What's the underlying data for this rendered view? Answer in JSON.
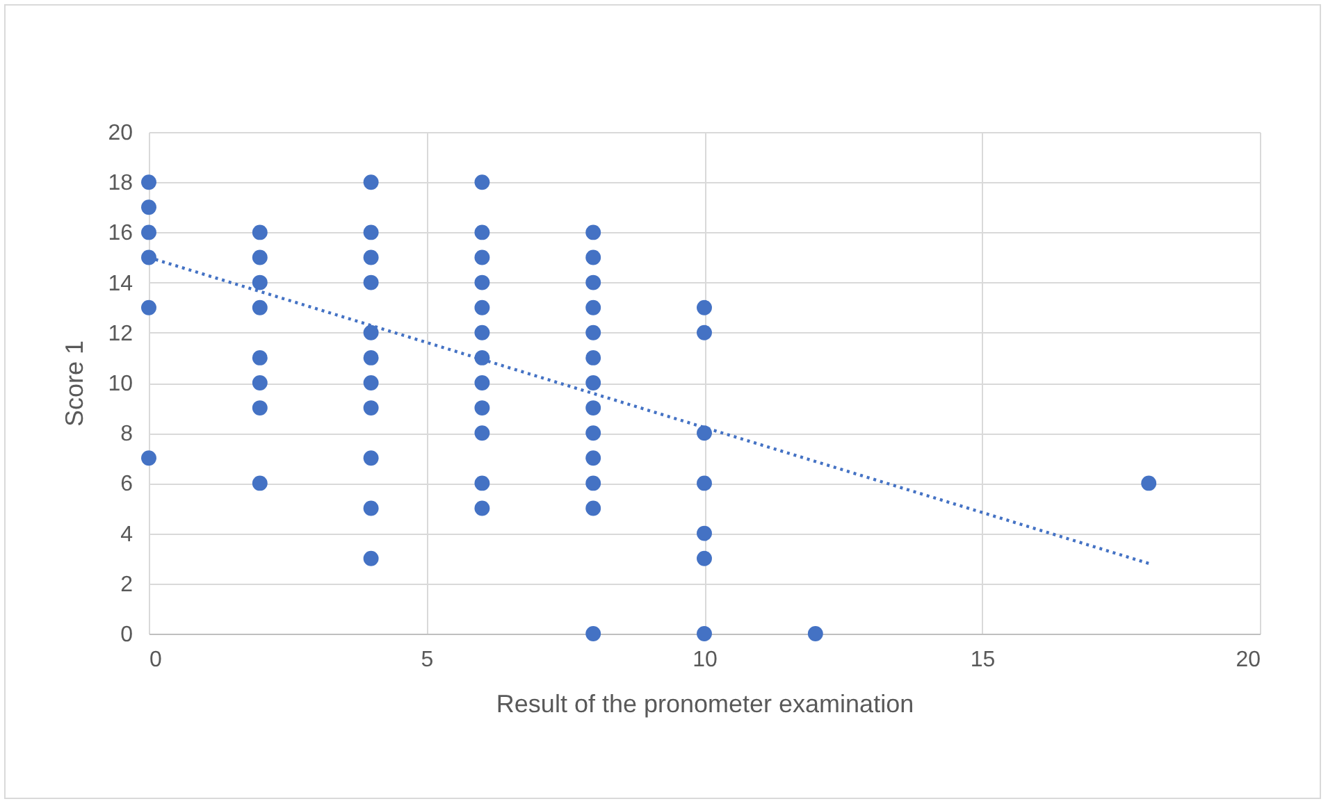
{
  "chart_data": {
    "type": "scatter",
    "xlabel": "Result of the pronometer examination",
    "ylabel": "Score 1",
    "xlim": [
      0,
      20
    ],
    "xticks": [
      0,
      5,
      10,
      15,
      20
    ],
    "ylim": [
      0,
      20
    ],
    "yticks": [
      0,
      2,
      4,
      6,
      8,
      10,
      12,
      14,
      16,
      18,
      20
    ],
    "grid": true,
    "legend": false,
    "series": [
      {
        "type": "scatter",
        "marker": "circle",
        "color": "#4472c4",
        "x": [
          0,
          0,
          0,
          0,
          0,
          0,
          2,
          2,
          2,
          2,
          2,
          2,
          2,
          2,
          4,
          4,
          4,
          4,
          4,
          4,
          4,
          4,
          4,
          4,
          4,
          6,
          6,
          6,
          6,
          6,
          6,
          6,
          6,
          6,
          6,
          6,
          6,
          8,
          8,
          8,
          8,
          8,
          8,
          8,
          8,
          8,
          8,
          8,
          8,
          8,
          10,
          10,
          10,
          10,
          10,
          10,
          10,
          12,
          18
        ],
        "values": [
          18,
          17,
          16,
          15,
          13,
          7,
          16,
          15,
          14,
          13,
          11,
          10,
          9,
          6,
          18,
          16,
          15,
          14,
          12,
          11,
          10,
          9,
          7,
          5,
          3,
          18,
          16,
          15,
          14,
          13,
          12,
          11,
          10,
          9,
          8,
          6,
          5,
          16,
          15,
          14,
          13,
          12,
          11,
          10,
          9,
          8,
          7,
          6,
          5,
          0,
          13,
          12,
          8,
          6,
          4,
          3,
          0,
          0,
          6
        ]
      },
      {
        "type": "line",
        "color": "#4472c4",
        "line_style": "dotted",
        "x": [
          0,
          18
        ],
        "values": [
          15,
          2.8
        ]
      }
    ]
  }
}
